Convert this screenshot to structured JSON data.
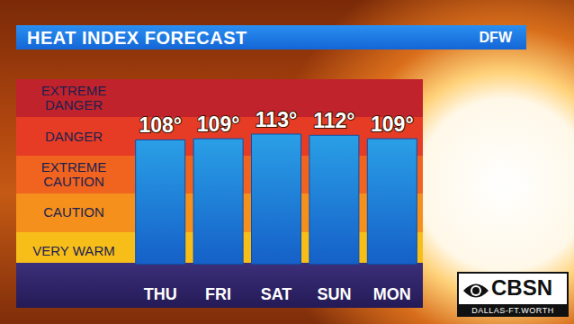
{
  "header": {
    "title": "HEAT INDEX FORECAST",
    "location": "DFW"
  },
  "chart_data": {
    "type": "bar",
    "categories": [
      "THU",
      "FRI",
      "SAT",
      "SUN",
      "MON"
    ],
    "values": [
      108,
      109,
      113,
      112,
      109
    ],
    "value_labels": [
      "108°",
      "109°",
      "113°",
      "112°",
      "109°"
    ],
    "data_labels": true,
    "color": "#2a9fe6",
    "ylim": [
      0,
      160
    ],
    "tick_labels": "x",
    "grid": false,
    "bands": [
      "EXTREME DANGER",
      "DANGER",
      "EXTREME CAUTION",
      "CAUTION",
      "VERY WARM"
    ]
  },
  "logo": {
    "text": "CBSN",
    "subtext": "DALLAS-FT.WORTH"
  }
}
